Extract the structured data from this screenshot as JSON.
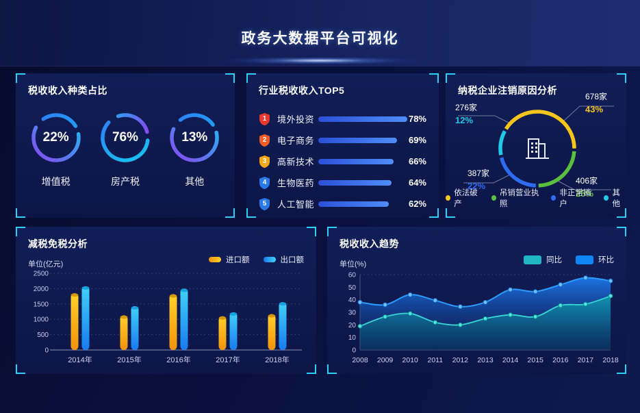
{
  "header": {
    "title": "政务大数据平台可视化"
  },
  "panels": {
    "tax_type": {
      "title": "税收收入种类占比"
    },
    "industry_top5": {
      "title": "行业税收收入TOP5"
    },
    "cancellation": {
      "title": "纳税企业注销原因分析"
    },
    "tax_reduction": {
      "title": "减税免税分析",
      "unit_label": "单位(亿元)"
    },
    "trend": {
      "title": "税收收入趋势",
      "unit_label": "单位(%)"
    }
  },
  "colors": {
    "corner_bracket": "#2bd0f5",
    "panel_bg_top": "#111e57",
    "panel_bg_bottom": "#0c1546",
    "page_bg": "#070c30"
  },
  "chart_data": [
    {
      "id": "tax_type_rings",
      "type": "pie",
      "title": "税收收入种类占比",
      "items": [
        {
          "label": "增值税",
          "value": 22,
          "display": "22%"
        },
        {
          "label": "房产税",
          "value": 76,
          "display": "76%"
        },
        {
          "label": "其他",
          "value": 13,
          "display": "13%"
        }
      ],
      "ring_colors": [
        "#2e7bf6",
        "#16c8f0",
        "#8a46f0"
      ]
    },
    {
      "id": "industry_top5",
      "type": "bar",
      "title": "行业税收收入TOP5",
      "categories": [
        "境外投资",
        "电子商务",
        "高新技术",
        "生物医药",
        "人工智能"
      ],
      "values": [
        78,
        69,
        66,
        64,
        62
      ],
      "value_suffix": "%",
      "badge_colors": [
        "#e6382e",
        "#f05c28",
        "#f0a814",
        "#2979e8",
        "#2979e8"
      ],
      "bar_color_start": "#2b50d8",
      "bar_color_end": "#4f8df8",
      "xlim": [
        0,
        78
      ]
    },
    {
      "id": "cancellation_donut",
      "type": "pie",
      "title": "纳税企业注销原因分析",
      "segments": [
        {
          "label": "依法破产",
          "count": "678家",
          "pct": "43%",
          "value": 43,
          "color": "#f5c51c"
        },
        {
          "label": "吊销营业执照",
          "count": "406家",
          "pct": "25%",
          "value": 25,
          "color": "#5abf3f"
        },
        {
          "label": "非正常销户",
          "count": "387家",
          "pct": "22%",
          "value": 22,
          "color": "#2d6bf0"
        },
        {
          "label": "其他",
          "count": "276家",
          "pct": "12%",
          "value": 12,
          "color": "#1fc9e8"
        }
      ],
      "legend_position": "bottom"
    },
    {
      "id": "import_export",
      "type": "bar",
      "title": "减税免税分析",
      "ylabel": "单位(亿元)",
      "categories": [
        "2014年",
        "2015年",
        "2016年",
        "2017年",
        "2018年"
      ],
      "series": [
        {
          "name": "进口额",
          "values": [
            1850,
            1130,
            1820,
            1100,
            1170
          ],
          "color_top": "#ffd128",
          "color_bottom": "#f2930c"
        },
        {
          "name": "出口额",
          "values": [
            2080,
            1430,
            2000,
            1230,
            1560
          ],
          "color_top": "#41d2f8",
          "color_bottom": "#1a7af0"
        }
      ],
      "ylim": [
        0,
        2500
      ],
      "ytick_step": 500,
      "grid": "dotted",
      "legend_position": "top-right"
    },
    {
      "id": "tax_trend",
      "type": "area",
      "title": "税收收入趋势",
      "ylabel": "单位(%)",
      "x": [
        "2008",
        "2009",
        "2010",
        "2011",
        "2012",
        "2013",
        "2014",
        "2015",
        "2016",
        "2017",
        "2018"
      ],
      "series": [
        {
          "name": "同比",
          "values": [
            19,
            26.5,
            29,
            22,
            20,
            25,
            28,
            26.5,
            35.5,
            36.5,
            43
          ],
          "color": "#36d8d4",
          "swatch": "#1fb6c2"
        },
        {
          "name": "环比",
          "values": [
            38,
            36,
            44,
            39.5,
            34.5,
            38,
            48,
            46.5,
            52,
            57.5,
            55
          ],
          "color": "#2b9cff",
          "swatch": "#0f86f5"
        }
      ],
      "ylim": [
        0,
        60
      ],
      "ytick_step": 10,
      "grid": "top-line-only",
      "legend_position": "top-right"
    }
  ]
}
